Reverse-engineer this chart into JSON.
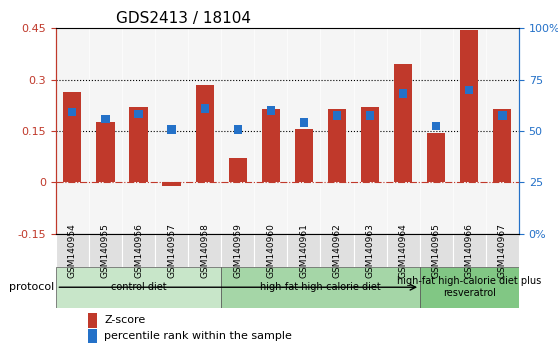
{
  "title": "GDS2413 / 18104",
  "samples": [
    "GSM140954",
    "GSM140955",
    "GSM140956",
    "GSM140957",
    "GSM140958",
    "GSM140959",
    "GSM140960",
    "GSM140961",
    "GSM140962",
    "GSM140963",
    "GSM140964",
    "GSM140965",
    "GSM140966",
    "GSM140967"
  ],
  "zscore": [
    0.265,
    0.175,
    0.22,
    -0.01,
    0.285,
    0.07,
    0.215,
    0.155,
    0.215,
    0.22,
    0.345,
    0.145,
    0.445,
    0.215
  ],
  "percentile": [
    0.205,
    0.185,
    0.2,
    0.155,
    0.215,
    0.155,
    0.21,
    0.175,
    0.195,
    0.195,
    0.26,
    0.165,
    0.27,
    0.195
  ],
  "bar_color": "#c0392b",
  "pct_color": "#2471c8",
  "ylim_left": [
    -0.15,
    0.45
  ],
  "ylim_right": [
    0,
    100
  ],
  "yticks_left": [
    -0.15,
    0.0,
    0.15,
    0.3,
    0.45
  ],
  "ytick_labels_left": [
    "-0.15",
    "0",
    "0.15",
    "0.3",
    "0.45"
  ],
  "yticks_right": [
    0,
    25,
    50,
    75,
    100
  ],
  "ytick_labels_right": [
    "0%",
    "25",
    "50",
    "75",
    "100%"
  ],
  "hlines": [
    0.15,
    0.3
  ],
  "groups": [
    {
      "label": "control diet",
      "start": 0,
      "end": 5,
      "color": "#c8e6c9"
    },
    {
      "label": "high-fat high-calorie diet",
      "start": 5,
      "end": 11,
      "color": "#a5d6a7"
    },
    {
      "label": "high-fat high-calorie diet plus\nresveratrol",
      "start": 11,
      "end": 14,
      "color": "#81c784"
    }
  ],
  "protocol_label": "protocol",
  "legend_zscore": "Z-score",
  "legend_pct": "percentile rank within the sample",
  "background_color": "#f5f5f5",
  "zero_line_color": "#c0392b"
}
